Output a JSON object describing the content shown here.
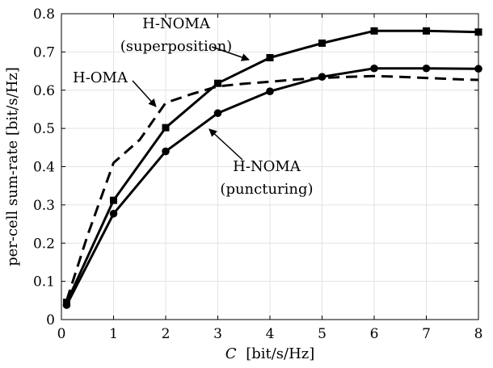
{
  "chart_data": {
    "type": "line",
    "xlabel_var": "C",
    "xlabel_unit": "[bit/s/Hz]",
    "ylabel": "per-cell sum-rate [bit/s/Hz]",
    "xlim": [
      0,
      8
    ],
    "ylim": [
      0,
      0.8
    ],
    "xticks": [
      0,
      1,
      2,
      3,
      4,
      5,
      6,
      7,
      8
    ],
    "yticks": [
      0,
      0.1,
      0.2,
      0.3,
      0.4,
      0.5,
      0.6,
      0.7,
      0.8
    ],
    "xtick_labels": [
      "0",
      "1",
      "2",
      "3",
      "4",
      "5",
      "6",
      "7",
      "8"
    ],
    "ytick_labels": [
      "0",
      "0.1",
      "0.2",
      "0.3",
      "0.4",
      "0.5",
      "0.6",
      "0.7",
      "0.8"
    ],
    "grid": true,
    "series": [
      {
        "name": "H-NOMA (superposition)",
        "marker": "square",
        "line": "solid",
        "x": [
          0.1,
          1,
          2,
          3,
          4,
          5,
          6,
          7,
          8
        ],
        "y": [
          0.045,
          0.312,
          0.502,
          0.618,
          0.685,
          0.723,
          0.755,
          0.755,
          0.752
        ]
      },
      {
        "name": "H-NOMA (puncturing)",
        "marker": "circle",
        "line": "solid",
        "x": [
          0.1,
          1,
          2,
          3,
          4,
          5,
          6,
          7,
          8
        ],
        "y": [
          0.038,
          0.277,
          0.44,
          0.54,
          0.597,
          0.635,
          0.657,
          0.657,
          0.656
        ]
      },
      {
        "name": "H-OMA",
        "marker": "none",
        "line": "dashed",
        "x": [
          0.1,
          0.5,
          1,
          1.5,
          2,
          2.5,
          3,
          3.5,
          4,
          4.5,
          5,
          5.5,
          6,
          6.5,
          7,
          7.5,
          8
        ],
        "y": [
          0.05,
          0.22,
          0.41,
          0.47,
          0.567,
          0.59,
          0.61,
          0.617,
          0.622,
          0.628,
          0.632,
          0.635,
          0.637,
          0.635,
          0.632,
          0.629,
          0.627
        ]
      }
    ],
    "annotations": [
      {
        "lines": [
          "H-NOMA",
          "(superposition)"
        ]
      },
      {
        "lines": [
          "H-OMA"
        ]
      },
      {
        "lines": [
          "H-NOMA",
          "(puncturing)"
        ]
      }
    ]
  }
}
